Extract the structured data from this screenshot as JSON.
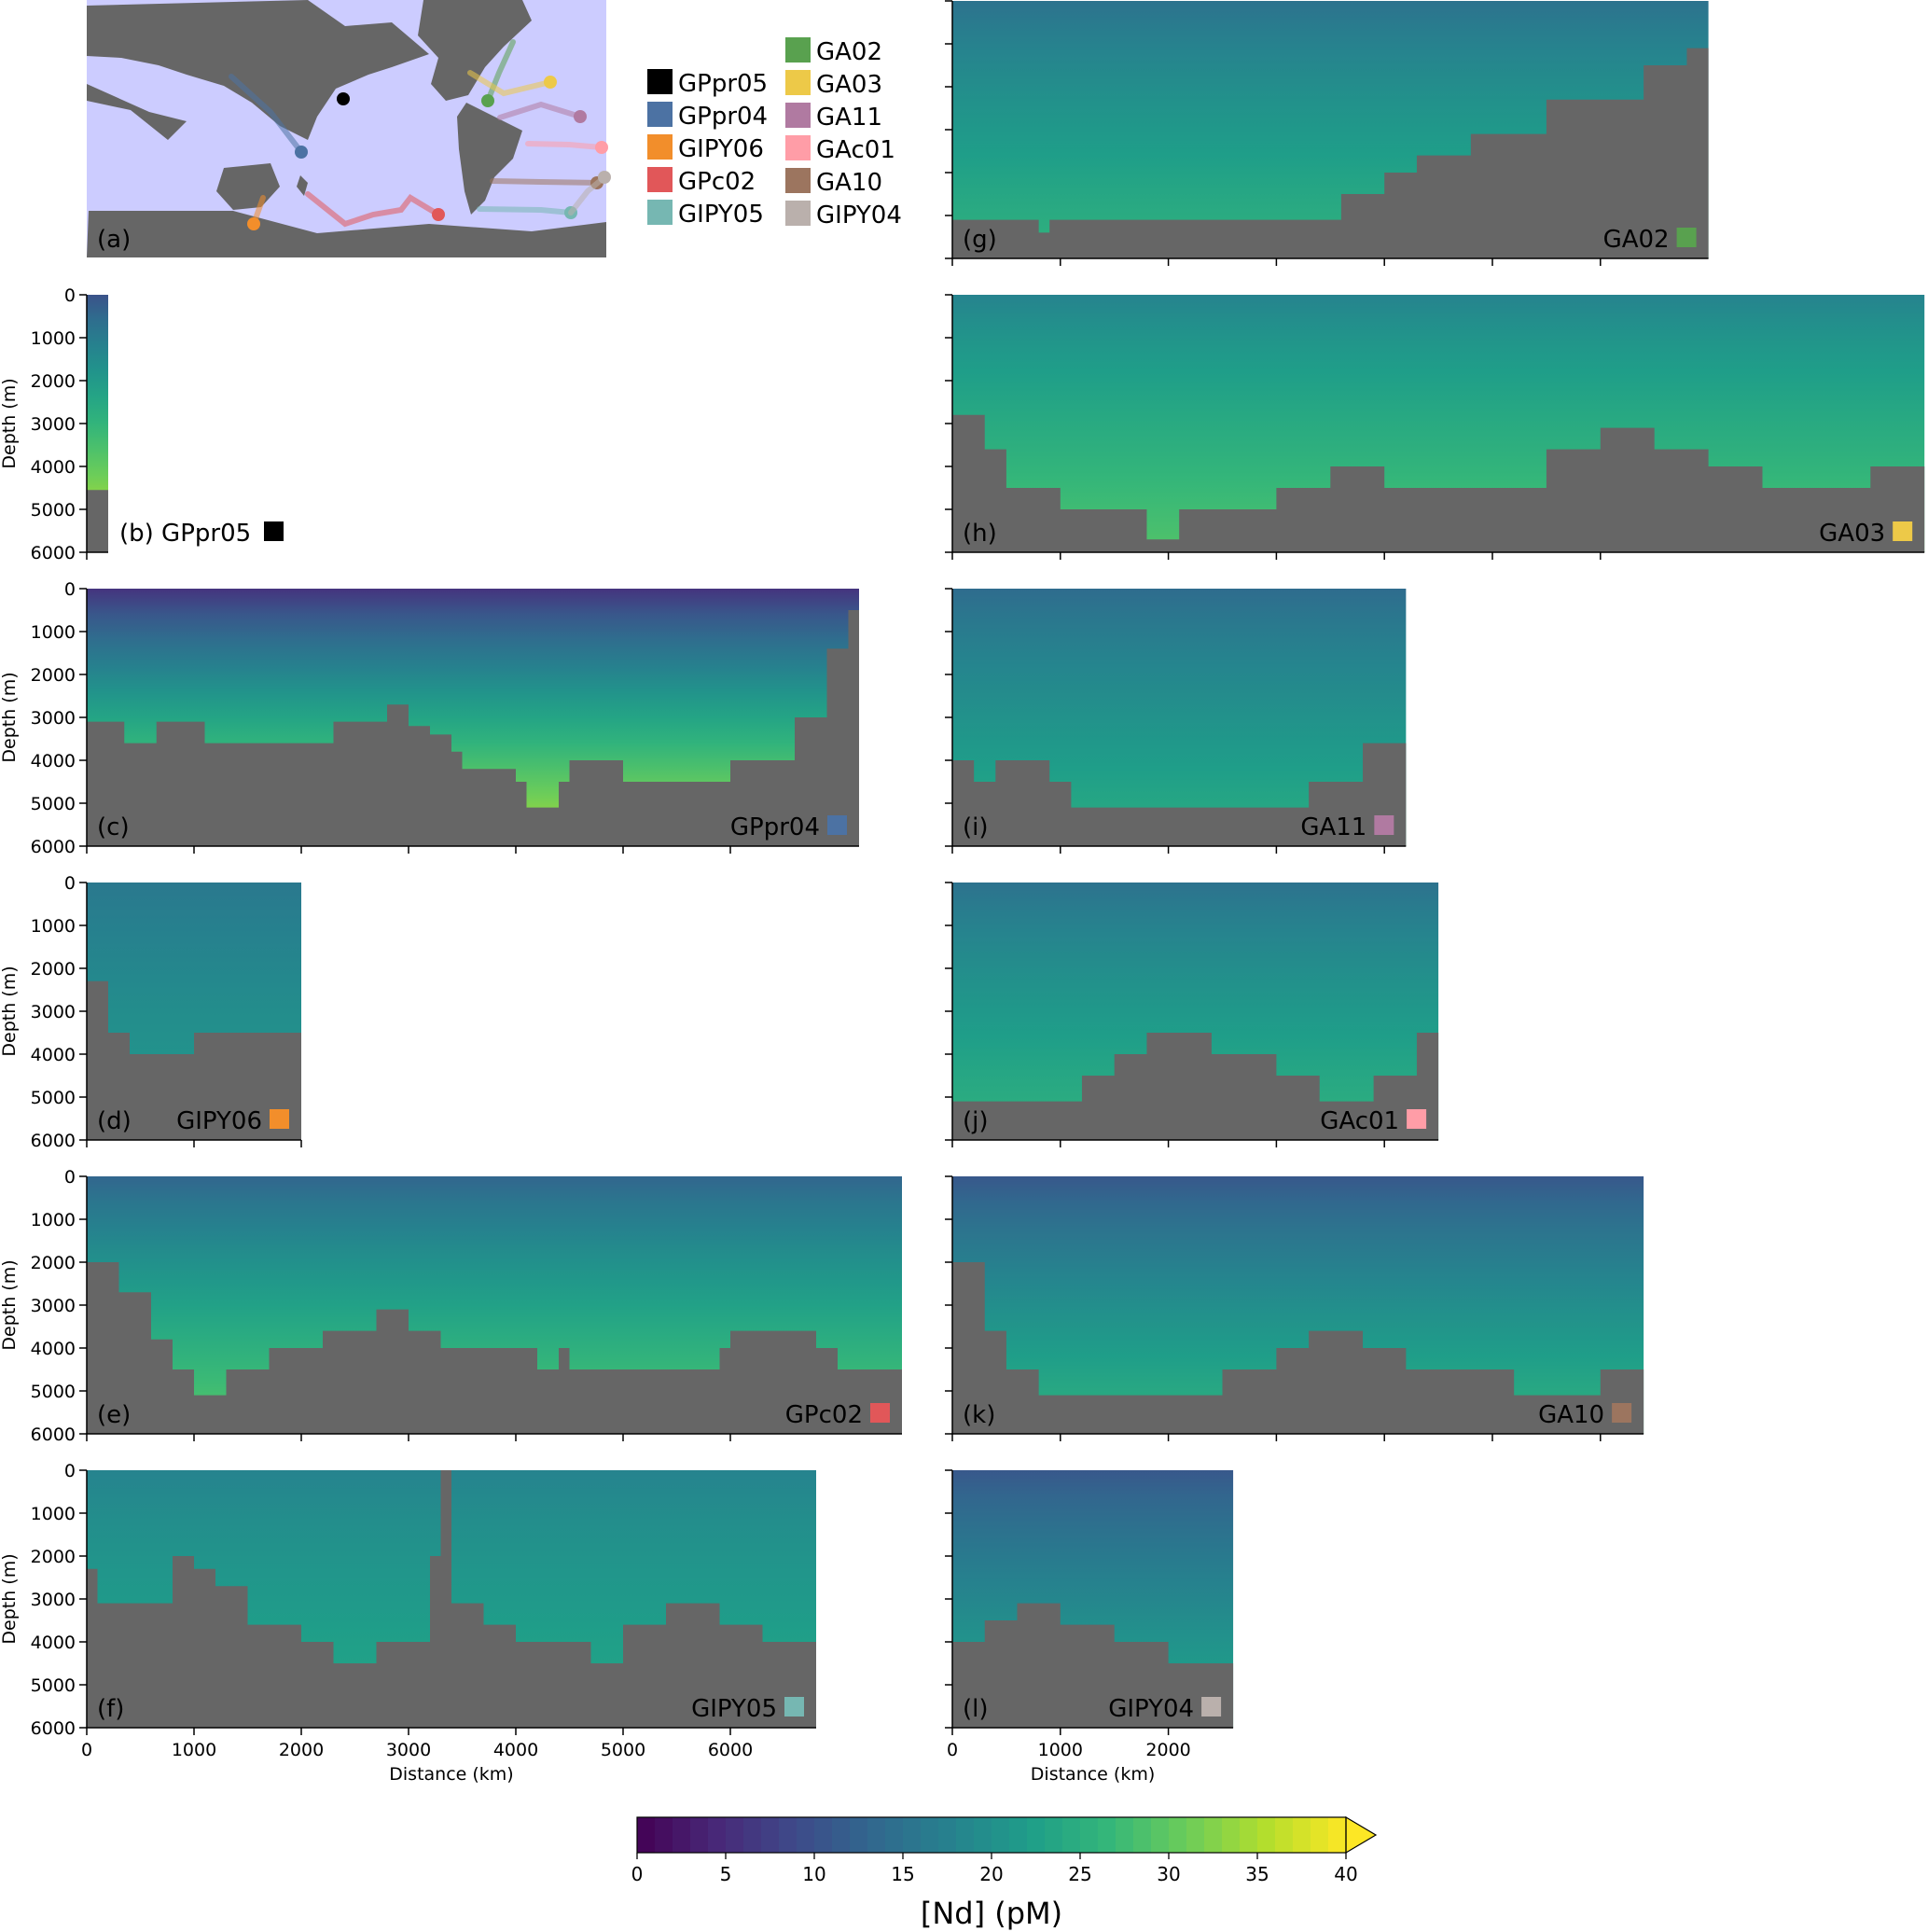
{
  "map_panel": {
    "label": "(a)",
    "ocean_color": "#ccccff",
    "land_color": "#666666"
  },
  "legend": {
    "entries": [
      {
        "name": "GPpr05",
        "color": "#000000"
      },
      {
        "name": "GPpr04",
        "color": "#4c72a3"
      },
      {
        "name": "GIPY06",
        "color": "#f28e2b"
      },
      {
        "name": "GPc02",
        "color": "#e15759"
      },
      {
        "name": "GIPY05",
        "color": "#76b7b2"
      },
      {
        "name": "GA02",
        "color": "#59a14f"
      },
      {
        "name": "GA03",
        "color": "#edc948"
      },
      {
        "name": "GA11",
        "color": "#b07aa1"
      },
      {
        "name": "GAc01",
        "color": "#ff9da7"
      },
      {
        "name": "GA10",
        "color": "#9c755f"
      },
      {
        "name": "GIPY04",
        "color": "#bab0ac"
      }
    ]
  },
  "colorbar": {
    "label": "[Nd] (pM)",
    "min": 0,
    "max": 40,
    "ticks": [
      "0",
      "5",
      "10",
      "15",
      "20",
      "25",
      "30",
      "35",
      "40"
    ],
    "colormap": "viridis",
    "extend": "max"
  },
  "axes": {
    "depth_label": "Depth (m)",
    "distance_label": "Distance (km)",
    "depth_ticks": [
      "0",
      "1000",
      "2000",
      "3000",
      "4000",
      "5000",
      "6000"
    ],
    "distance_ticks": [
      "0",
      "1000",
      "2000",
      "3000",
      "4000",
      "5000",
      "6000"
    ]
  },
  "chart_data": {
    "type": "heatmap",
    "variable": "[Nd] (pM)",
    "depth_range": [
      0,
      6000
    ],
    "panels": [
      {
        "id": "b",
        "label": "(b) GPpr05",
        "section": "GPpr05",
        "color": "#000000",
        "length_km": 200,
        "seafloor": [
          [
            0,
            4550
          ],
          [
            200,
            4550
          ]
        ],
        "nd_surface": 10,
        "nd_deep": 38
      },
      {
        "id": "c",
        "label": "(c)",
        "section": "GPpr04",
        "color": "#4c72a3",
        "length_km": 7200,
        "seafloor": [
          [
            0,
            3100
          ],
          [
            350,
            3600
          ],
          [
            650,
            3100
          ],
          [
            1100,
            3600
          ],
          [
            2300,
            3100
          ],
          [
            2800,
            2700
          ],
          [
            3000,
            3200
          ],
          [
            3200,
            3400
          ],
          [
            3400,
            3800
          ],
          [
            3500,
            4200
          ],
          [
            4000,
            4500
          ],
          [
            4100,
            5100
          ],
          [
            4400,
            4500
          ],
          [
            4500,
            4000
          ],
          [
            5000,
            4500
          ],
          [
            6000,
            4000
          ],
          [
            6600,
            3000
          ],
          [
            6900,
            1400
          ],
          [
            7100,
            500
          ],
          [
            7200,
            500
          ]
        ],
        "nd_surface": 6,
        "nd_deep": 36
      },
      {
        "id": "d",
        "label": "(d)",
        "section": "GIPY06",
        "color": "#f28e2b",
        "length_km": 2000,
        "seafloor": [
          [
            0,
            2300
          ],
          [
            200,
            3500
          ],
          [
            400,
            4000
          ],
          [
            1000,
            3500
          ],
          [
            2000,
            3500
          ]
        ],
        "nd_surface": 16,
        "nd_deep": 22
      },
      {
        "id": "e",
        "label": "(e)",
        "section": "GPc02",
        "color": "#e15759",
        "length_km": 7600,
        "seafloor": [
          [
            0,
            2000
          ],
          [
            300,
            2700
          ],
          [
            600,
            3800
          ],
          [
            800,
            4500
          ],
          [
            1000,
            5100
          ],
          [
            1300,
            4500
          ],
          [
            1700,
            4000
          ],
          [
            2200,
            3600
          ],
          [
            2700,
            3100
          ],
          [
            3000,
            3600
          ],
          [
            3300,
            4000
          ],
          [
            4000,
            4000
          ],
          [
            4200,
            4500
          ],
          [
            4400,
            4000
          ],
          [
            4500,
            4500
          ],
          [
            5400,
            4500
          ],
          [
            5900,
            4000
          ],
          [
            6000,
            3600
          ],
          [
            6800,
            4000
          ],
          [
            7000,
            4500
          ],
          [
            7600,
            4500
          ]
        ],
        "nd_surface": 13,
        "nd_deep": 30
      },
      {
        "id": "f",
        "label": "(f)",
        "section": "GIPY05",
        "color": "#76b7b2",
        "length_km": 6800,
        "seafloor": [
          [
            0,
            2300
          ],
          [
            100,
            3100
          ],
          [
            700,
            3100
          ],
          [
            800,
            2000
          ],
          [
            1000,
            2300
          ],
          [
            1200,
            2700
          ],
          [
            1500,
            3600
          ],
          [
            2000,
            4000
          ],
          [
            2300,
            4500
          ],
          [
            2700,
            4000
          ],
          [
            3200,
            2000
          ],
          [
            3300,
            0
          ],
          [
            3400,
            3100
          ],
          [
            3700,
            3600
          ],
          [
            4000,
            4000
          ],
          [
            4700,
            4500
          ],
          [
            5000,
            3600
          ],
          [
            5400,
            3100
          ],
          [
            5900,
            3600
          ],
          [
            6300,
            4000
          ],
          [
            6800,
            4500
          ]
        ],
        "nd_surface": 18,
        "nd_deep": 24
      },
      {
        "id": "g",
        "label": "(g)",
        "section": "GA02",
        "color": "#59a14f",
        "length_km": 7000,
        "seafloor": [
          [
            0,
            5100
          ],
          [
            800,
            5400
          ],
          [
            900,
            5100
          ],
          [
            3500,
            5100
          ],
          [
            3600,
            4500
          ],
          [
            4000,
            4000
          ],
          [
            4300,
            3600
          ],
          [
            4800,
            3100
          ],
          [
            5500,
            2300
          ],
          [
            6000,
            2300
          ],
          [
            6400,
            1500
          ],
          [
            6800,
            1100
          ],
          [
            7000,
            900
          ]
        ],
        "nd_surface": 15,
        "nd_deep": 26
      },
      {
        "id": "h",
        "label": "(h)",
        "section": "GA03",
        "color": "#edc948",
        "length_km": 9000,
        "seafloor": [
          [
            0,
            2800
          ],
          [
            300,
            3600
          ],
          [
            500,
            4500
          ],
          [
            1000,
            5000
          ],
          [
            1500,
            5000
          ],
          [
            1800,
            5700
          ],
          [
            2100,
            5000
          ],
          [
            3000,
            4500
          ],
          [
            3500,
            4000
          ],
          [
            4000,
            4500
          ],
          [
            5000,
            4500
          ],
          [
            5500,
            3600
          ],
          [
            6000,
            3100
          ],
          [
            6500,
            3600
          ],
          [
            7000,
            4000
          ],
          [
            7500,
            4500
          ],
          [
            8500,
            4000
          ],
          [
            9000,
            3000
          ]
        ],
        "nd_surface": 18,
        "nd_deep": 29
      },
      {
        "id": "i",
        "label": "(i)",
        "section": "GA11",
        "color": "#b07aa1",
        "length_km": 4200,
        "seafloor": [
          [
            0,
            4000
          ],
          [
            200,
            4500
          ],
          [
            400,
            4000
          ],
          [
            900,
            4500
          ],
          [
            1100,
            5100
          ],
          [
            2600,
            5100
          ],
          [
            3300,
            4500
          ],
          [
            3800,
            3600
          ],
          [
            4200,
            3000
          ]
        ],
        "nd_surface": 14,
        "nd_deep": 25
      },
      {
        "id": "j",
        "label": "(j)",
        "section": "GAc01",
        "color": "#ff9da7",
        "length_km": 4500,
        "seafloor": [
          [
            0,
            5100
          ],
          [
            900,
            5100
          ],
          [
            1200,
            4500
          ],
          [
            1500,
            4000
          ],
          [
            1800,
            3500
          ],
          [
            2400,
            4000
          ],
          [
            3000,
            4500
          ],
          [
            3400,
            5100
          ],
          [
            3900,
            4500
          ],
          [
            4300,
            3500
          ],
          [
            4500,
            3500
          ]
        ],
        "nd_surface": 15,
        "nd_deep": 26
      },
      {
        "id": "k",
        "label": "(k)",
        "section": "GA10",
        "color": "#9c755f",
        "length_km": 6400,
        "seafloor": [
          [
            0,
            2000
          ],
          [
            300,
            3600
          ],
          [
            500,
            4500
          ],
          [
            800,
            5100
          ],
          [
            1900,
            5100
          ],
          [
            2500,
            4500
          ],
          [
            3000,
            4000
          ],
          [
            3300,
            3600
          ],
          [
            3800,
            4000
          ],
          [
            4200,
            4500
          ],
          [
            5200,
            5100
          ],
          [
            6000,
            4500
          ],
          [
            6400,
            3600
          ]
        ],
        "nd_surface": 11,
        "nd_deep": 26
      },
      {
        "id": "l",
        "label": "(l)",
        "section": "GIPY04",
        "color": "#bab0ac",
        "length_km": 2600,
        "seafloor": [
          [
            0,
            4000
          ],
          [
            300,
            3500
          ],
          [
            600,
            3100
          ],
          [
            1000,
            3600
          ],
          [
            1500,
            4000
          ],
          [
            2000,
            4500
          ],
          [
            2600,
            4500
          ]
        ],
        "nd_surface": 11,
        "nd_deep": 24
      }
    ]
  }
}
